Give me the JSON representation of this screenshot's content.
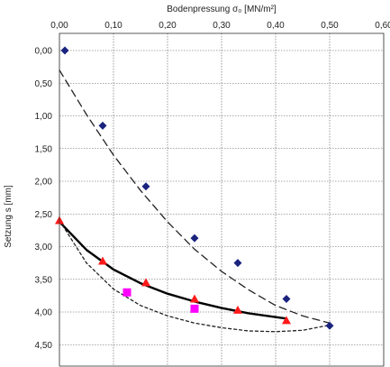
{
  "chart_data": {
    "type": "scatter",
    "xlabel": "Bodenpressung σ₀ [MN/m²]",
    "ylabel": "Setzung s [mm]",
    "x_axis_position": "top",
    "y_inverted": true,
    "xlim": [
      0.0,
      0.6
    ],
    "ylim": [
      0.0,
      4.75
    ],
    "grid": true,
    "x_ticks": [
      "0,00",
      "0,10",
      "0,20",
      "0,30",
      "0,40",
      "0,50",
      "0,60"
    ],
    "x_tick_values": [
      0.0,
      0.1,
      0.2,
      0.3,
      0.4,
      0.5,
      0.6
    ],
    "y_ticks": [
      "0,00",
      "0,50",
      "1,00",
      "1,50",
      "2,00",
      "2,50",
      "3,00",
      "3,50",
      "4,00",
      "4,50"
    ],
    "y_tick_values": [
      0.0,
      0.5,
      1.0,
      1.5,
      2.0,
      2.5,
      3.0,
      3.5,
      4.0,
      4.5
    ],
    "series": [
      {
        "marker": "diamond",
        "color": "#1a237e",
        "x": [
          0.01,
          0.08,
          0.16,
          0.25,
          0.33,
          0.42,
          0.5
        ],
        "y": [
          0.0,
          1.15,
          2.08,
          2.87,
          3.25,
          3.8,
          4.21
        ]
      },
      {
        "marker": "triangle",
        "color": "#ff1a1a",
        "x": [
          0.0,
          0.08,
          0.16,
          0.25,
          0.33,
          0.42
        ],
        "y": [
          2.6,
          3.22,
          3.55,
          3.8,
          3.97,
          4.13
        ]
      },
      {
        "marker": "square",
        "color": "#ff00ff",
        "x": [
          0.125,
          0.25
        ],
        "y": [
          3.7,
          3.95
        ]
      }
    ],
    "trendlines": [
      {
        "style": "dashed",
        "color": "#222222",
        "x": [
          0.0,
          0.05,
          0.1,
          0.15,
          0.2,
          0.25,
          0.3,
          0.35,
          0.4,
          0.45,
          0.5
        ],
        "y": [
          0.3,
          0.98,
          1.6,
          2.14,
          2.62,
          3.04,
          3.38,
          3.66,
          3.9,
          4.06,
          4.17
        ]
      },
      {
        "style": "solid",
        "color": "#000000",
        "x": [
          0.0,
          0.05,
          0.1,
          0.15,
          0.2,
          0.25,
          0.3,
          0.35,
          0.42
        ],
        "y": [
          2.62,
          3.05,
          3.35,
          3.56,
          3.72,
          3.84,
          3.94,
          4.02,
          4.1
        ]
      },
      {
        "style": "dotted",
        "color": "#222222",
        "x": [
          0.0,
          0.05,
          0.1,
          0.15,
          0.2,
          0.25,
          0.3,
          0.35,
          0.4,
          0.45,
          0.5
        ],
        "y": [
          2.6,
          3.25,
          3.65,
          3.9,
          4.06,
          4.17,
          4.24,
          4.29,
          4.3,
          4.28,
          4.2
        ]
      }
    ]
  }
}
